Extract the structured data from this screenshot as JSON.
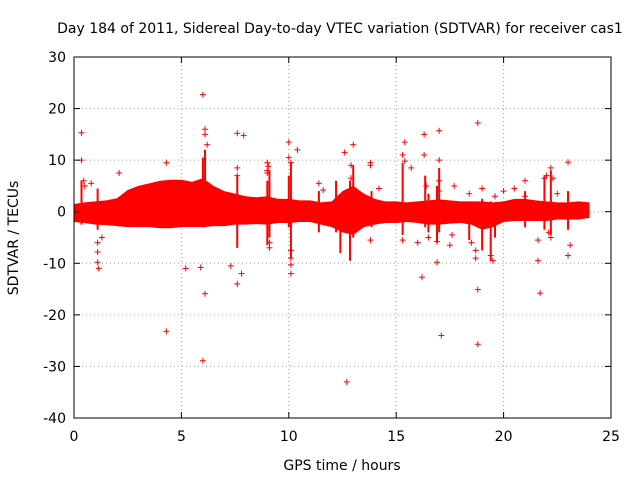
{
  "chart_data": {
    "type": "scatter",
    "title": "Day 184 of 2011, Sidereal Day-to-day VTEC variation (SDTVAR) for receiver cas1",
    "xlabel": "GPS time / hours",
    "ylabel": "SDTVAR / TECUs",
    "xlim": [
      0,
      25
    ],
    "ylim": [
      -40,
      30
    ],
    "xticks": [
      0,
      5,
      10,
      15,
      20,
      25
    ],
    "yticks": [
      -40,
      -30,
      -20,
      -10,
      0,
      10,
      20,
      30
    ],
    "xtick_labels": [
      "0",
      "5",
      "10",
      "15",
      "20",
      "25"
    ],
    "ytick_labels": [
      "-40",
      "-30",
      "-20",
      "-10",
      "0",
      "10",
      "20",
      "30"
    ],
    "grid": true,
    "marker": "+",
    "color": "#ff0000",
    "series": [
      {
        "name": "SDTVAR",
        "outliers": [
          [
            0.35,
            15.3
          ],
          [
            0.35,
            10.0
          ],
          [
            0.45,
            6.0
          ],
          [
            0.5,
            5.0
          ],
          [
            0.8,
            5.5
          ],
          [
            1.1,
            -6.0
          ],
          [
            1.1,
            -7.8
          ],
          [
            1.1,
            -9.8
          ],
          [
            1.15,
            -11.0
          ],
          [
            1.3,
            -5.0
          ],
          [
            2.1,
            7.5
          ],
          [
            4.3,
            9.5
          ],
          [
            4.3,
            -23.2
          ],
          [
            5.2,
            -11.0
          ],
          [
            5.9,
            -10.8
          ],
          [
            6.0,
            22.7
          ],
          [
            6.1,
            -15.9
          ],
          [
            6.0,
            -28.9
          ],
          [
            6.1,
            16.0
          ],
          [
            6.1,
            15.0
          ],
          [
            6.2,
            13.0
          ],
          [
            7.3,
            -10.5
          ],
          [
            7.6,
            -14.0
          ],
          [
            7.6,
            15.2
          ],
          [
            7.8,
            -12.0
          ],
          [
            7.9,
            14.8
          ],
          [
            7.6,
            8.5
          ],
          [
            7.6,
            7.0
          ],
          [
            9.0,
            9.5
          ],
          [
            9.05,
            8.8
          ],
          [
            9.0,
            8.0
          ],
          [
            9.0,
            7.5
          ],
          [
            9.1,
            -6.0
          ],
          [
            9.1,
            -7.0
          ],
          [
            10.0,
            13.5
          ],
          [
            10.0,
            10.5
          ],
          [
            10.1,
            9.5
          ],
          [
            10.1,
            -7.5
          ],
          [
            10.1,
            -9.0
          ],
          [
            10.1,
            -10.3
          ],
          [
            10.1,
            -12.0
          ],
          [
            10.4,
            12.0
          ],
          [
            11.4,
            5.5
          ],
          [
            11.6,
            4.2
          ],
          [
            12.7,
            -33.0
          ],
          [
            12.6,
            11.5
          ],
          [
            13.0,
            13.0
          ],
          [
            12.9,
            9.0
          ],
          [
            12.9,
            6.5
          ],
          [
            13.8,
            9.5
          ],
          [
            13.8,
            9.0
          ],
          [
            13.8,
            -5.5
          ],
          [
            14.2,
            4.5
          ],
          [
            15.4,
            13.5
          ],
          [
            15.3,
            11.0
          ],
          [
            15.4,
            9.8
          ],
          [
            15.3,
            -5.5
          ],
          [
            15.7,
            8.5
          ],
          [
            16.0,
            -6.0
          ],
          [
            16.2,
            -12.7
          ],
          [
            16.3,
            15.0
          ],
          [
            16.3,
            11.0
          ],
          [
            16.4,
            5.0
          ],
          [
            16.5,
            -5.0
          ],
          [
            16.9,
            -9.8
          ],
          [
            16.9,
            -5.8
          ],
          [
            17.0,
            15.7
          ],
          [
            17.0,
            10.0
          ],
          [
            17.0,
            6.0
          ],
          [
            17.0,
            4.0
          ],
          [
            17.1,
            -24.0
          ],
          [
            17.5,
            -6.5
          ],
          [
            17.6,
            -4.5
          ],
          [
            17.7,
            5.0
          ],
          [
            18.4,
            3.5
          ],
          [
            18.5,
            -6.0
          ],
          [
            18.7,
            -7.5
          ],
          [
            18.7,
            -9.0
          ],
          [
            18.8,
            17.2
          ],
          [
            18.8,
            -15.1
          ],
          [
            18.8,
            -25.7
          ],
          [
            19.0,
            4.5
          ],
          [
            19.4,
            -8.5
          ],
          [
            19.5,
            -9.5
          ],
          [
            19.6,
            3.0
          ],
          [
            20.0,
            4.0
          ],
          [
            20.5,
            4.5
          ],
          [
            21.0,
            6.0
          ],
          [
            21.0,
            3.0
          ],
          [
            21.6,
            -5.5
          ],
          [
            21.6,
            -9.5
          ],
          [
            21.7,
            -15.8
          ],
          [
            21.9,
            6.5
          ],
          [
            22.0,
            7.0
          ],
          [
            22.1,
            -4.0
          ],
          [
            22.2,
            -5.0
          ],
          [
            22.2,
            8.5
          ],
          [
            22.3,
            6.5
          ],
          [
            22.5,
            3.5
          ],
          [
            23.0,
            9.6
          ],
          [
            23.1,
            -6.5
          ],
          [
            23.0,
            -8.5
          ]
        ],
        "spikes": [
          [
            0.35,
            6.0,
            -2.5
          ],
          [
            1.1,
            4.5,
            -3.5
          ],
          [
            6.0,
            10.5,
            -3.0
          ],
          [
            6.1,
            12.0,
            -3.0
          ],
          [
            7.6,
            7.0,
            -7.0
          ],
          [
            9.0,
            6.0,
            -6.5
          ],
          [
            9.1,
            8.0,
            -5.0
          ],
          [
            10.0,
            7.0,
            -3.0
          ],
          [
            10.1,
            9.5,
            -9.0
          ],
          [
            11.4,
            4.0,
            -4.0
          ],
          [
            12.2,
            6.0,
            -4.0
          ],
          [
            12.4,
            3.0,
            -8.0
          ],
          [
            12.85,
            6.0,
            -9.5
          ],
          [
            13.0,
            9.0,
            -5.0
          ],
          [
            13.85,
            4.0,
            -3.0
          ],
          [
            15.3,
            9.5,
            -4.5
          ],
          [
            16.35,
            7.0,
            -3.0
          ],
          [
            16.5,
            3.5,
            -4.0
          ],
          [
            16.9,
            5.0,
            -6.0
          ],
          [
            17.0,
            8.5,
            -4.0
          ],
          [
            18.4,
            2.0,
            -5.5
          ],
          [
            19.0,
            2.5,
            -7.5
          ],
          [
            19.4,
            2.0,
            -9.5
          ],
          [
            19.6,
            1.5,
            -5.0
          ],
          [
            21.0,
            4.0,
            -3.0
          ],
          [
            21.9,
            7.0,
            -3.5
          ],
          [
            22.2,
            8.0,
            -4.5
          ],
          [
            23.0,
            4.0,
            -3.5
          ]
        ],
        "envelope": [
          [
            0.0,
            1.5,
            -2.0
          ],
          [
            0.5,
            1.8,
            -2.2
          ],
          [
            1.0,
            2.0,
            -2.5
          ],
          [
            1.5,
            2.2,
            -2.6
          ],
          [
            2.0,
            2.6,
            -2.8
          ],
          [
            2.5,
            4.2,
            -3.0
          ],
          [
            3.0,
            5.0,
            -3.0
          ],
          [
            3.5,
            5.5,
            -3.0
          ],
          [
            4.0,
            6.0,
            -3.2
          ],
          [
            4.5,
            6.2,
            -3.2
          ],
          [
            5.0,
            6.2,
            -3.0
          ],
          [
            5.5,
            5.8,
            -3.0
          ],
          [
            6.0,
            6.5,
            -3.0
          ],
          [
            6.5,
            5.0,
            -2.8
          ],
          [
            7.0,
            4.0,
            -2.8
          ],
          [
            7.5,
            3.5,
            -2.5
          ],
          [
            8.0,
            3.0,
            -2.5
          ],
          [
            8.5,
            2.8,
            -2.4
          ],
          [
            9.0,
            3.0,
            -2.5
          ],
          [
            9.5,
            2.5,
            -2.2
          ],
          [
            10.0,
            2.5,
            -2.2
          ],
          [
            10.5,
            2.2,
            -2.0
          ],
          [
            11.0,
            2.2,
            -2.0
          ],
          [
            11.5,
            1.8,
            -2.5
          ],
          [
            12.0,
            2.0,
            -3.0
          ],
          [
            12.5,
            4.0,
            -4.0
          ],
          [
            13.0,
            5.0,
            -4.5
          ],
          [
            13.5,
            3.5,
            -3.0
          ],
          [
            14.0,
            2.5,
            -2.5
          ],
          [
            14.5,
            2.0,
            -2.2
          ],
          [
            15.0,
            2.0,
            -2.2
          ],
          [
            15.5,
            1.8,
            -2.0
          ],
          [
            16.0,
            2.0,
            -2.2
          ],
          [
            16.5,
            2.2,
            -2.5
          ],
          [
            17.0,
            2.4,
            -2.5
          ],
          [
            17.5,
            2.2,
            -2.3
          ],
          [
            18.0,
            2.0,
            -2.2
          ],
          [
            18.5,
            2.0,
            -2.5
          ],
          [
            19.0,
            2.0,
            -3.5
          ],
          [
            19.5,
            1.8,
            -3.0
          ],
          [
            20.0,
            2.0,
            -2.0
          ],
          [
            20.5,
            2.5,
            -1.8
          ],
          [
            21.0,
            2.5,
            -1.8
          ],
          [
            21.5,
            2.2,
            -1.8
          ],
          [
            22.0,
            2.0,
            -1.8
          ],
          [
            22.5,
            1.8,
            -1.5
          ],
          [
            23.0,
            1.8,
            -1.5
          ],
          [
            23.5,
            2.0,
            -1.5
          ],
          [
            24.0,
            1.8,
            -1.2
          ]
        ]
      }
    ]
  }
}
